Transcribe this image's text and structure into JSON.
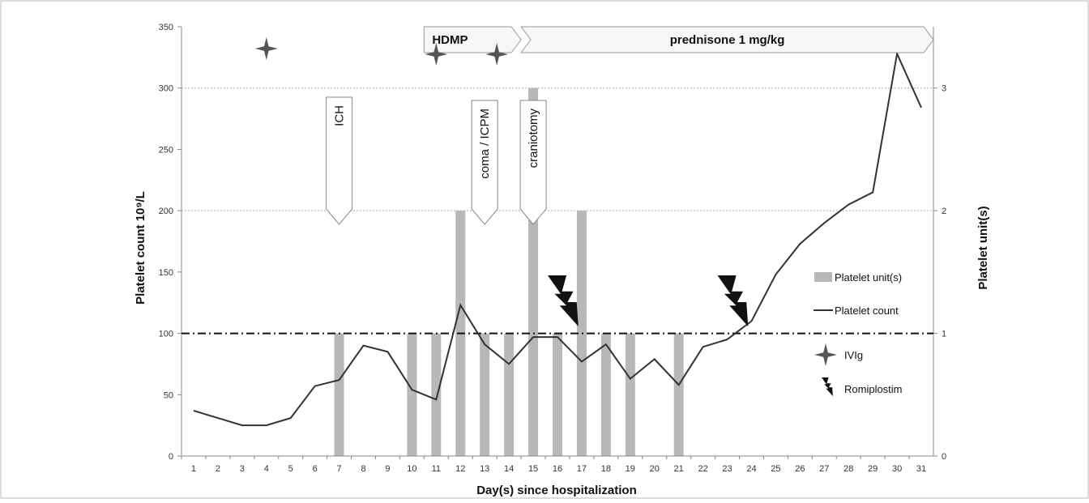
{
  "chart_data": {
    "type": "bar",
    "xlabel": "Day(s) since hospitalization",
    "ylabel": "Platelet count 10⁹/L",
    "y2label": "Platelet unit(s)",
    "x": [
      1,
      2,
      3,
      4,
      5,
      6,
      7,
      8,
      9,
      10,
      11,
      12,
      13,
      14,
      15,
      16,
      17,
      18,
      19,
      20,
      21,
      22,
      23,
      24,
      25,
      26,
      27,
      28,
      29,
      30,
      31
    ],
    "ylim": [
      0,
      350
    ],
    "y_ticks": [
      0,
      50,
      100,
      150,
      200,
      250,
      300,
      350
    ],
    "y2lim": [
      0,
      3.5
    ],
    "y2_ticks": [
      0,
      1,
      2,
      3
    ],
    "series": [
      {
        "name": "Platelet unit(s)",
        "kind": "bar",
        "axis": "right",
        "color": "#b8b8b8",
        "points": [
          [
            7,
            1
          ],
          [
            10,
            1
          ],
          [
            11,
            1
          ],
          [
            12,
            2
          ],
          [
            13,
            1
          ],
          [
            14,
            1
          ],
          [
            15,
            3
          ],
          [
            16,
            1
          ],
          [
            17,
            2
          ],
          [
            18,
            1
          ],
          [
            19,
            1
          ],
          [
            21,
            1
          ]
        ]
      },
      {
        "name": "Platelet count",
        "kind": "line",
        "axis": "left",
        "color": "#333333",
        "values": [
          37,
          31,
          25,
          25,
          31,
          57,
          62,
          90,
          85,
          54,
          46,
          123,
          91,
          75,
          97,
          97,
          77,
          91,
          63,
          79,
          58,
          89,
          95,
          110,
          148,
          173,
          190,
          205,
          215,
          328,
          284
        ]
      }
    ],
    "reference_line": {
      "y": 100,
      "style": "dash-dot",
      "color": "#111111"
    },
    "grid": {
      "horizontal": true,
      "style": "dotted",
      "at": [
        200,
        300
      ]
    },
    "legend": {
      "placement": "right",
      "items": [
        {
          "label": "Platelet unit(s)",
          "symbol": "bar"
        },
        {
          "label": "Platelet count",
          "symbol": "line"
        },
        {
          "label": "IVIg",
          "symbol": "star"
        },
        {
          "label": "Romiplostim",
          "symbol": "bolt"
        }
      ]
    },
    "events": {
      "ivig_days": [
        4,
        11,
        13.5
      ],
      "romiplostim_days": [
        16,
        23
      ],
      "treatments": [
        {
          "label": "HDMP",
          "start": 10.5,
          "end": 14.5
        },
        {
          "label": "prednisone 1 mg/kg",
          "start": 14.5,
          "end": 31.5
        }
      ],
      "annotations": [
        {
          "label": "ICH",
          "day": 7
        },
        {
          "label": "coma / ICPM",
          "day": 13
        },
        {
          "label": "craniotomy",
          "day": 15
        }
      ]
    }
  },
  "colors": {
    "border": "#bbbbbb",
    "axis": "#888888",
    "grid": "#aaaaaa",
    "bar": "#b8b8b8",
    "line": "#333333",
    "marker": "#555555",
    "bolt": "#111111"
  }
}
